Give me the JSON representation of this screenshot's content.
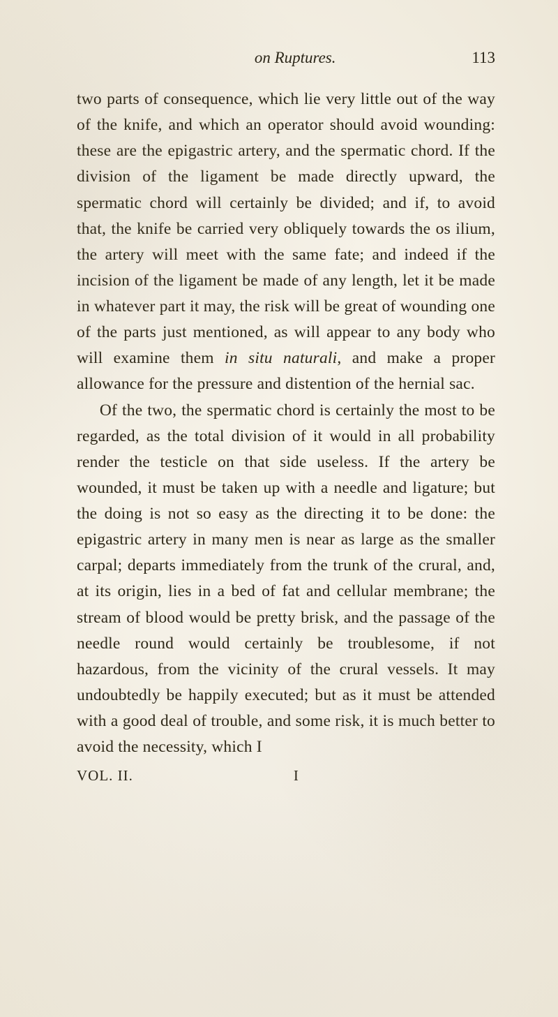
{
  "page": {
    "running_title": "on Ruptures.",
    "page_number": "113",
    "paragraphs": [
      "two parts of consequence, which lie very little out of the way of the knife, and which an operator should avoid wounding: these are the epigastric artery, and the spermatic chord. If the division of the ligament be made directly upward, the spermatic chord will certainly be divided; and if, to avoid that, the knife be carried very obliquely towards the os ilium, the artery will meet with the same fate; and indeed if the incision of the ligament be made of any length, let it be made in whatever part it may, the risk will be great of wounding one of the parts just mentioned, as will appear to any body who will examine them ",
      "in situ naturali",
      ", and make a proper allowance for the pressure and distention of the hernial sac.",
      "Of the two, the spermatic chord is certainly the most to be regarded, as the total division of it would in all probability render the testicle on that side useless. If the artery be wounded, it must be taken up with a needle and ligature; but the doing is not so easy as the directing it to be done: the epigastric artery in many men is near as large as the smaller carpal; departs immediately from the trunk of the crural, and, at its origin, lies in a bed of fat and cellular membrane; the stream of blood would be pretty brisk, and the passage of the needle round would certainly be troublesome, if not hazardous, from the vicinity of the crural vessels. It may undoubtedly be happily executed; but as it must be attended with a good deal of trouble, and some risk, it is much better to avoid the necessity, which I"
    ],
    "footer": {
      "volume": "VOL. II.",
      "signature": "I"
    }
  },
  "style": {
    "background_color": "#f4f0e6",
    "text_color": "#2a2518",
    "body_fontsize": 23.5,
    "header_fontsize": 23,
    "line_height": 1.58
  }
}
